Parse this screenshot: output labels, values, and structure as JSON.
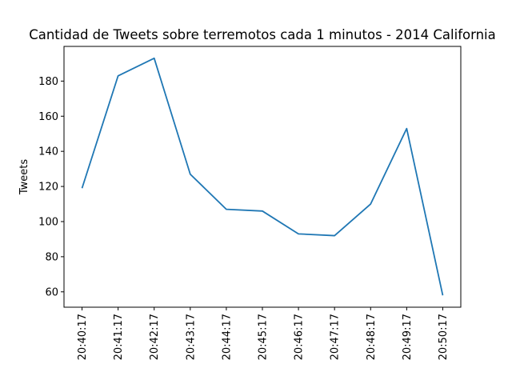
{
  "chart_data": {
    "type": "line",
    "title": "Cantidad de Tweets sobre terremotos cada 1 minutos - 2014 California",
    "xlabel": "",
    "ylabel": "Tweets",
    "categories": [
      "20:40:17",
      "20:41:17",
      "20:42:17",
      "20:43:17",
      "20:44:17",
      "20:45:17",
      "20:46:17",
      "20:47:17",
      "20:48:17",
      "20:49:17",
      "20:50:17"
    ],
    "series": [
      {
        "values": [
          119,
          183,
          193,
          127,
          107,
          106,
          93,
          92,
          110,
          153,
          58
        ]
      }
    ],
    "ylim": [
      51.25,
      199.75
    ],
    "yticks": [
      60,
      80,
      100,
      120,
      140,
      160,
      180
    ],
    "grid": false,
    "color": "#1f77b4"
  }
}
